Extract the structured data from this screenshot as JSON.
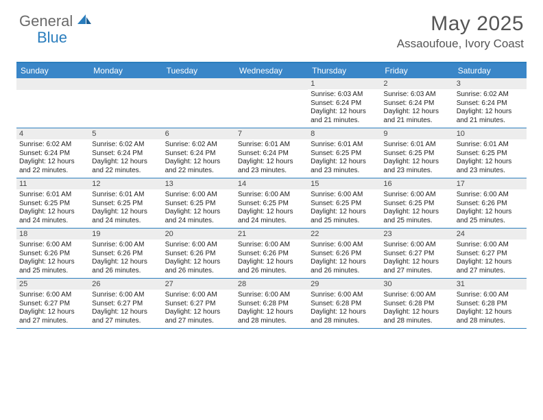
{
  "brand": {
    "general": "General",
    "blue": "Blue"
  },
  "title": "May 2025",
  "location": "Assaoufoue, Ivory Coast",
  "colors": {
    "header_bg": "#3a86c8",
    "border": "#2a7dbd",
    "daynum_bg": "#ededed",
    "text_dark": "#222222",
    "text_muted": "#555555"
  },
  "day_names": [
    "Sunday",
    "Monday",
    "Tuesday",
    "Wednesday",
    "Thursday",
    "Friday",
    "Saturday"
  ],
  "weeks": [
    [
      null,
      null,
      null,
      null,
      {
        "n": "1",
        "sr": "6:03 AM",
        "ss": "6:24 PM",
        "dl": "12 hours and 21 minutes."
      },
      {
        "n": "2",
        "sr": "6:03 AM",
        "ss": "6:24 PM",
        "dl": "12 hours and 21 minutes."
      },
      {
        "n": "3",
        "sr": "6:02 AM",
        "ss": "6:24 PM",
        "dl": "12 hours and 21 minutes."
      }
    ],
    [
      {
        "n": "4",
        "sr": "6:02 AM",
        "ss": "6:24 PM",
        "dl": "12 hours and 22 minutes."
      },
      {
        "n": "5",
        "sr": "6:02 AM",
        "ss": "6:24 PM",
        "dl": "12 hours and 22 minutes."
      },
      {
        "n": "6",
        "sr": "6:02 AM",
        "ss": "6:24 PM",
        "dl": "12 hours and 22 minutes."
      },
      {
        "n": "7",
        "sr": "6:01 AM",
        "ss": "6:24 PM",
        "dl": "12 hours and 23 minutes."
      },
      {
        "n": "8",
        "sr": "6:01 AM",
        "ss": "6:25 PM",
        "dl": "12 hours and 23 minutes."
      },
      {
        "n": "9",
        "sr": "6:01 AM",
        "ss": "6:25 PM",
        "dl": "12 hours and 23 minutes."
      },
      {
        "n": "10",
        "sr": "6:01 AM",
        "ss": "6:25 PM",
        "dl": "12 hours and 23 minutes."
      }
    ],
    [
      {
        "n": "11",
        "sr": "6:01 AM",
        "ss": "6:25 PM",
        "dl": "12 hours and 24 minutes."
      },
      {
        "n": "12",
        "sr": "6:01 AM",
        "ss": "6:25 PM",
        "dl": "12 hours and 24 minutes."
      },
      {
        "n": "13",
        "sr": "6:00 AM",
        "ss": "6:25 PM",
        "dl": "12 hours and 24 minutes."
      },
      {
        "n": "14",
        "sr": "6:00 AM",
        "ss": "6:25 PM",
        "dl": "12 hours and 24 minutes."
      },
      {
        "n": "15",
        "sr": "6:00 AM",
        "ss": "6:25 PM",
        "dl": "12 hours and 25 minutes."
      },
      {
        "n": "16",
        "sr": "6:00 AM",
        "ss": "6:25 PM",
        "dl": "12 hours and 25 minutes."
      },
      {
        "n": "17",
        "sr": "6:00 AM",
        "ss": "6:26 PM",
        "dl": "12 hours and 25 minutes."
      }
    ],
    [
      {
        "n": "18",
        "sr": "6:00 AM",
        "ss": "6:26 PM",
        "dl": "12 hours and 25 minutes."
      },
      {
        "n": "19",
        "sr": "6:00 AM",
        "ss": "6:26 PM",
        "dl": "12 hours and 26 minutes."
      },
      {
        "n": "20",
        "sr": "6:00 AM",
        "ss": "6:26 PM",
        "dl": "12 hours and 26 minutes."
      },
      {
        "n": "21",
        "sr": "6:00 AM",
        "ss": "6:26 PM",
        "dl": "12 hours and 26 minutes."
      },
      {
        "n": "22",
        "sr": "6:00 AM",
        "ss": "6:26 PM",
        "dl": "12 hours and 26 minutes."
      },
      {
        "n": "23",
        "sr": "6:00 AM",
        "ss": "6:27 PM",
        "dl": "12 hours and 27 minutes."
      },
      {
        "n": "24",
        "sr": "6:00 AM",
        "ss": "6:27 PM",
        "dl": "12 hours and 27 minutes."
      }
    ],
    [
      {
        "n": "25",
        "sr": "6:00 AM",
        "ss": "6:27 PM",
        "dl": "12 hours and 27 minutes."
      },
      {
        "n": "26",
        "sr": "6:00 AM",
        "ss": "6:27 PM",
        "dl": "12 hours and 27 minutes."
      },
      {
        "n": "27",
        "sr": "6:00 AM",
        "ss": "6:27 PM",
        "dl": "12 hours and 27 minutes."
      },
      {
        "n": "28",
        "sr": "6:00 AM",
        "ss": "6:28 PM",
        "dl": "12 hours and 28 minutes."
      },
      {
        "n": "29",
        "sr": "6:00 AM",
        "ss": "6:28 PM",
        "dl": "12 hours and 28 minutes."
      },
      {
        "n": "30",
        "sr": "6:00 AM",
        "ss": "6:28 PM",
        "dl": "12 hours and 28 minutes."
      },
      {
        "n": "31",
        "sr": "6:00 AM",
        "ss": "6:28 PM",
        "dl": "12 hours and 28 minutes."
      }
    ]
  ],
  "labels": {
    "sunrise": "Sunrise: ",
    "sunset": "Sunset: ",
    "daylight": "Daylight: "
  }
}
